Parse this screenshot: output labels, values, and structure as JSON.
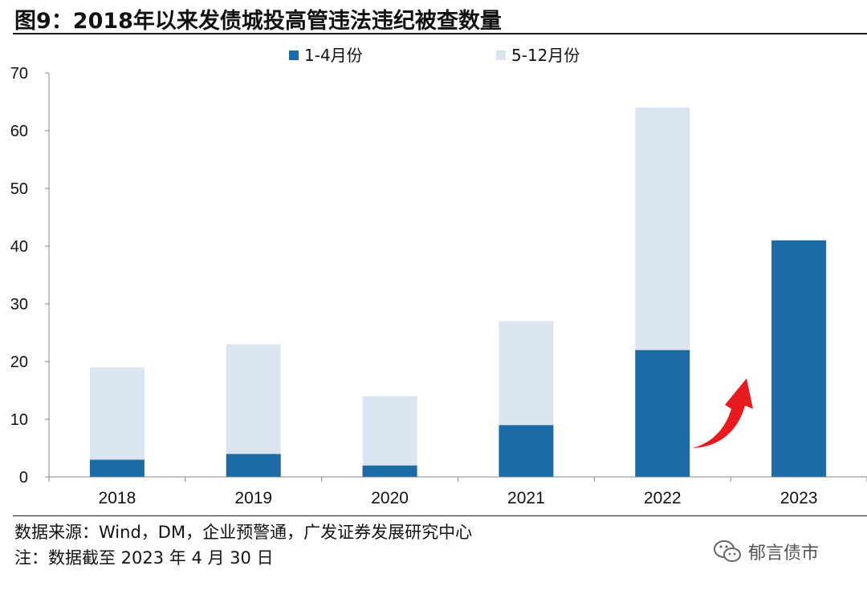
{
  "figure_title": "图9：2018年以来发债城投高管违法违纪被查数量",
  "footer": {
    "source": "数据来源：Wind，DM，企业预警通，广发证券发展研究中心",
    "note": "注：数据截至 2023 年 4 月 30 日"
  },
  "watermark": {
    "icon": "wechat-icon",
    "text": "郁言债市"
  },
  "chart_data": {
    "type": "bar",
    "stacked": true,
    "categories": [
      "2018",
      "2019",
      "2020",
      "2021",
      "2022",
      "2023"
    ],
    "series": [
      {
        "name": "1-4月份",
        "color": "#1c6ba6",
        "values": [
          3,
          4,
          2,
          9,
          22,
          41
        ]
      },
      {
        "name": "5-12月份",
        "color": "#dbe5f1",
        "values": [
          16,
          19,
          12,
          18,
          42,
          0
        ]
      }
    ],
    "ylim": [
      0,
      70
    ],
    "yticks": [
      0,
      10,
      20,
      30,
      40,
      50,
      60,
      70
    ],
    "grid": false,
    "legend_position": "top-center",
    "annotation": {
      "type": "arrow",
      "color": "#e8191f",
      "from": "2022",
      "to": "2023"
    }
  }
}
